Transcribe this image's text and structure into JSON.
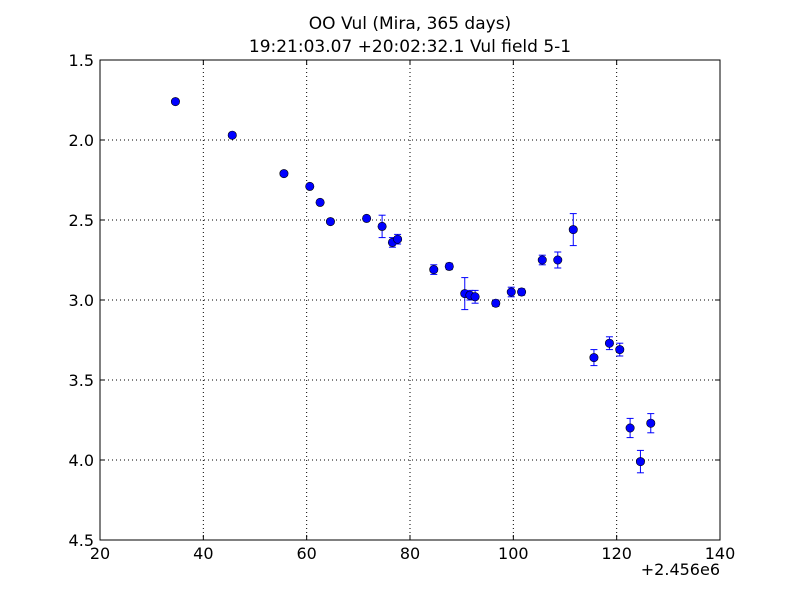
{
  "chart_data": {
    "type": "scatter",
    "title_line1": "OO Vul (Mira, 365 days)",
    "title_line2": "19:21:03.07 +20:02:32.1 Vul field 5-1",
    "xlabel": "",
    "ylabel": "",
    "x_offset_label": "+2.456e6",
    "xlim": [
      20,
      140
    ],
    "ylim": [
      1.5,
      4.5
    ],
    "y_inverted": true,
    "grid": true,
    "marker_color": "#0000ff",
    "xticks": [
      20,
      40,
      60,
      80,
      100,
      120,
      140
    ],
    "xtick_labels": [
      "20",
      "40",
      "60",
      "80",
      "100",
      "120",
      "140"
    ],
    "yticks": [
      1.5,
      2.0,
      2.5,
      3.0,
      3.5,
      4.0,
      4.5
    ],
    "ytick_labels": [
      "1.5",
      "2.0",
      "2.5",
      "3.0",
      "3.5",
      "4.0",
      "4.5"
    ],
    "points": [
      {
        "x": 34.6,
        "y": 1.76,
        "err": 0.0
      },
      {
        "x": 45.6,
        "y": 1.97,
        "err": 0.0
      },
      {
        "x": 55.6,
        "y": 2.21,
        "err": 0.0
      },
      {
        "x": 60.6,
        "y": 2.29,
        "err": 0.0
      },
      {
        "x": 62.6,
        "y": 2.39,
        "err": 0.0
      },
      {
        "x": 64.6,
        "y": 2.51,
        "err": 0.0
      },
      {
        "x": 71.6,
        "y": 2.49,
        "err": 0.0
      },
      {
        "x": 74.6,
        "y": 2.54,
        "err": 0.07
      },
      {
        "x": 76.6,
        "y": 2.64,
        "err": 0.03
      },
      {
        "x": 77.6,
        "y": 2.62,
        "err": 0.03
      },
      {
        "x": 84.6,
        "y": 2.81,
        "err": 0.03
      },
      {
        "x": 87.6,
        "y": 2.79,
        "err": 0.02
      },
      {
        "x": 90.6,
        "y": 2.96,
        "err": 0.1
      },
      {
        "x": 91.6,
        "y": 2.97,
        "err": 0.03
      },
      {
        "x": 92.6,
        "y": 2.98,
        "err": 0.04
      },
      {
        "x": 96.6,
        "y": 3.02,
        "err": 0.02
      },
      {
        "x": 99.6,
        "y": 2.95,
        "err": 0.03
      },
      {
        "x": 101.6,
        "y": 2.95,
        "err": 0.02
      },
      {
        "x": 105.6,
        "y": 2.75,
        "err": 0.03
      },
      {
        "x": 108.6,
        "y": 2.75,
        "err": 0.05
      },
      {
        "x": 111.6,
        "y": 2.56,
        "err": 0.1
      },
      {
        "x": 115.6,
        "y": 3.36,
        "err": 0.05
      },
      {
        "x": 118.6,
        "y": 3.27,
        "err": 0.04
      },
      {
        "x": 120.6,
        "y": 3.31,
        "err": 0.04
      },
      {
        "x": 122.6,
        "y": 3.8,
        "err": 0.06
      },
      {
        "x": 124.6,
        "y": 4.01,
        "err": 0.07
      },
      {
        "x": 126.6,
        "y": 3.77,
        "err": 0.06
      }
    ]
  }
}
